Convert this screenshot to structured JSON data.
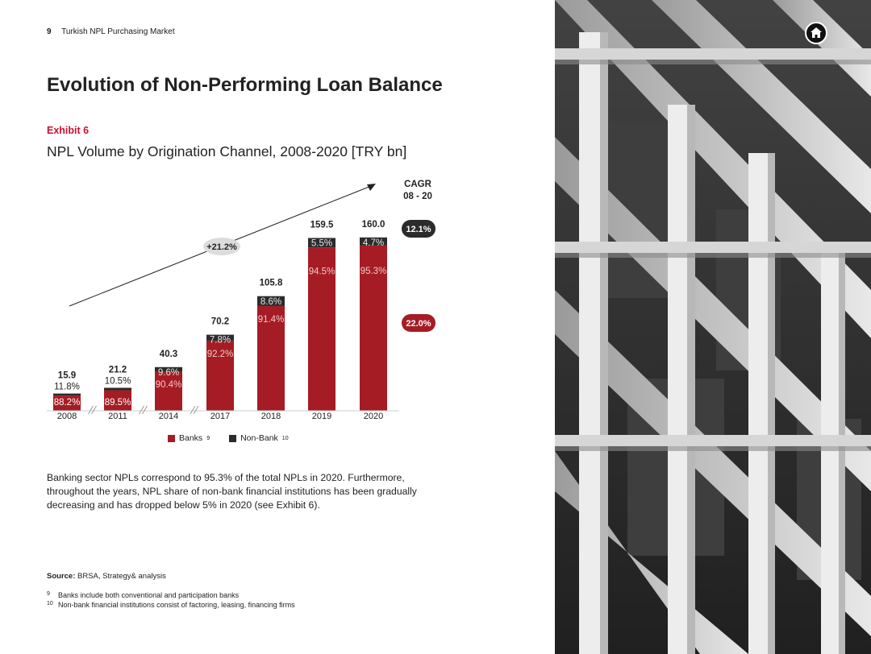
{
  "header": {
    "page_number": "9",
    "running_title": "Turkish NPL Purchasing Market"
  },
  "title": "Evolution of Non-Performing Loan Balance",
  "exhibit_label": "Exhibit 6",
  "chart_data": {
    "type": "bar",
    "stacked": true,
    "title": "NPL Volume by Origination Channel, 2008-2020 [TRY bn]",
    "categories": [
      "2008",
      "2011",
      "2014",
      "2017",
      "2018",
      "2019",
      "2020"
    ],
    "totals": [
      "15.9",
      "21.2",
      "40.3",
      "70.2",
      "105.8",
      "159.5",
      "160.0"
    ],
    "total_values": [
      15.9,
      21.2,
      40.3,
      70.2,
      105.8,
      159.5,
      160.0
    ],
    "series": [
      {
        "name": "Banks",
        "footnote_ref": "9",
        "color": "#a51c24",
        "share_values": [
          88.2,
          89.5,
          90.4,
          92.2,
          91.4,
          94.5,
          95.3
        ],
        "labels": [
          "88.2%",
          "89.5%",
          "90.4%",
          "92.2%",
          "91.4%",
          "94.5%",
          "95.3%"
        ]
      },
      {
        "name": "Non-Bank",
        "footnote_ref": "10",
        "color": "#2b2b2b",
        "share_values": [
          11.8,
          10.5,
          9.6,
          7.8,
          8.6,
          5.5,
          4.7
        ],
        "labels": [
          "11.8%",
          "10.5%",
          "9.6%",
          "7.8%",
          "8.6%",
          "5.5%",
          "4.7%"
        ]
      }
    ],
    "ylim": [
      0,
      160
    ],
    "axis_break_after": [
      "2008",
      "2011",
      "2014"
    ],
    "trend_label": "+21.2%",
    "cagr_header": "CAGR\n08 - 20",
    "cagr_badges": [
      {
        "label": "12.1%",
        "color": "#2b2b2b",
        "series": "Non-Bank"
      },
      {
        "label": "22.0%",
        "color": "#a51c24",
        "series": "Banks"
      }
    ],
    "legend_position": "bottom"
  },
  "body_text": "Banking sector NPLs correspond to 95.3% of the total NPLs in 2020. Furthermore, throughout the years, NPL share of non-bank financial institutions has been gradually decreasing and has dropped below 5% in 2020 (see Exhibit 6).",
  "source": {
    "label": "Source:",
    "text": " BRSA, Strategy& analysis"
  },
  "footnotes": [
    {
      "number": "9",
      "text": "Banks include both conventional and participation banks"
    },
    {
      "number": "10",
      "text": "Non-bank financial institutions consist of factoring, leasing, financing firms"
    }
  ],
  "icons": {
    "home": "home-icon"
  },
  "colors": {
    "accent": "#c8102e",
    "bank_red": "#a51c24",
    "non_bank": "#2b2b2b"
  }
}
